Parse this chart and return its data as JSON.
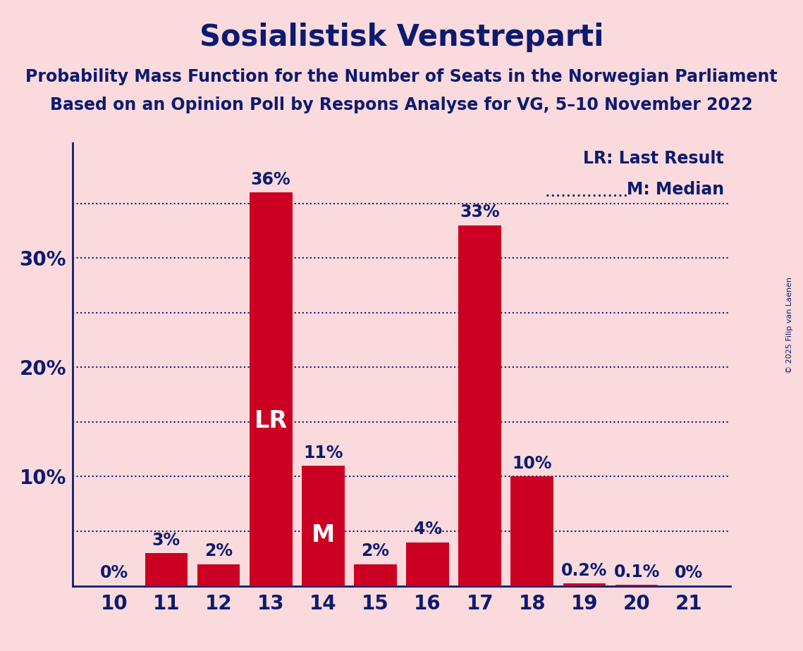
{
  "title": "Sosialistisk Venstreparti",
  "subtitle1": "Probability Mass Function for the Number of Seats in the Norwegian Parliament",
  "subtitle2": "Based on an Opinion Poll by Respons Analyse for VG, 5–10 November 2022",
  "copyright": "© 2025 Filip van Laenen",
  "seats": [
    10,
    11,
    12,
    13,
    14,
    15,
    16,
    17,
    18,
    19,
    20,
    21
  ],
  "probabilities": [
    0.0,
    0.03,
    0.02,
    0.36,
    0.11,
    0.02,
    0.04,
    0.33,
    0.1,
    0.002,
    0.001,
    0.0
  ],
  "prob_labels": [
    "0%",
    "3%",
    "2%",
    "36%",
    "11%",
    "2%",
    "4%",
    "33%",
    "10%",
    "0.2%",
    "0.1%",
    "0%"
  ],
  "bar_color": "#CC0022",
  "background_color": "#FADADD",
  "text_color": "#0D1B6E",
  "lr_seat": 13,
  "median_seat": 14,
  "legend_lr": "LR: Last Result",
  "legend_m": "M: Median",
  "ytick_positions": [
    0.1,
    0.2,
    0.3
  ],
  "ytick_labels": [
    "10%",
    "20%",
    "30%"
  ],
  "grid_lines": [
    0.05,
    0.1,
    0.15,
    0.2,
    0.25,
    0.3,
    0.35
  ],
  "title_fontsize": 30,
  "subtitle_fontsize": 17,
  "label_fontsize": 17,
  "tick_fontsize": 20,
  "legend_fontsize": 17,
  "inside_label_fontsize": 24
}
